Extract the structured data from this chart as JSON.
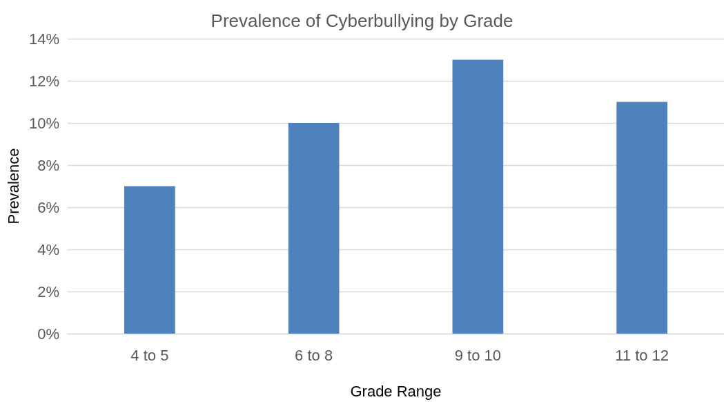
{
  "chart_data": {
    "type": "bar",
    "title": "Prevalence of Cyberbullying by Grade",
    "xlabel": "Grade Range",
    "ylabel": "Prevalence",
    "categories": [
      "4 to 5",
      "6 to 8",
      "9 to 10",
      "11 to 12"
    ],
    "values": [
      7,
      10,
      13,
      11
    ],
    "color": "#4f81bd",
    "ylim": [
      0,
      14
    ],
    "yticks": [
      {
        "value": 0,
        "label": "0%"
      },
      {
        "value": 2,
        "label": "2%"
      },
      {
        "value": 4,
        "label": "4%"
      },
      {
        "value": 6,
        "label": "6%"
      },
      {
        "value": 8,
        "label": "8%"
      },
      {
        "value": 10,
        "label": "10%"
      },
      {
        "value": 12,
        "label": "12%"
      },
      {
        "value": 14,
        "label": "14%"
      }
    ],
    "grid": "y"
  }
}
